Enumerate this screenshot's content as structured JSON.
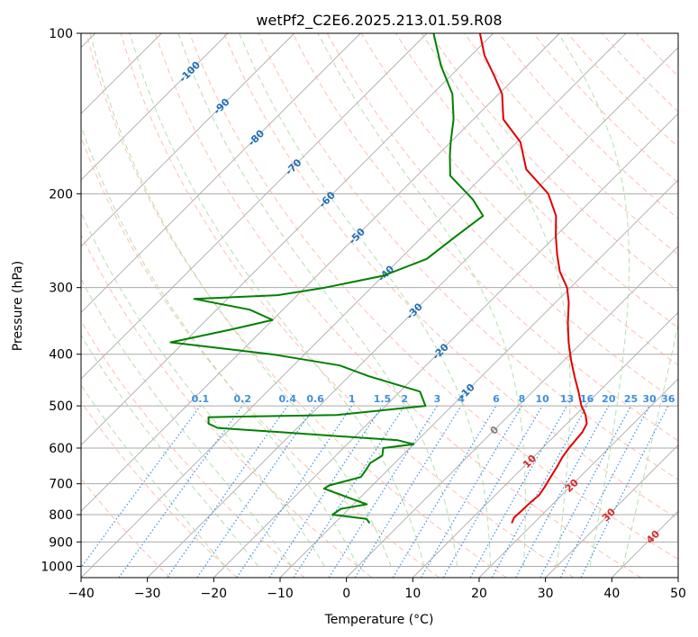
{
  "chart_data": {
    "type": "line",
    "diagram": "Skew-T log-P",
    "title": "wetPf2_C2E6.2025.213.01.59.R08",
    "xlabel": "Temperature (°C)",
    "ylabel": "Pressure (hPa)",
    "xlim": [
      -40,
      50
    ],
    "ylim": [
      1050,
      100
    ],
    "y_scale": "log",
    "grid": true,
    "x_ticks": [
      "−40",
      "−30",
      "−20",
      "−10",
      "0",
      "10",
      "20",
      "30",
      "40",
      "50"
    ],
    "y_ticks": [
      "100",
      "200",
      "300",
      "400",
      "500",
      "600",
      "700",
      "800",
      "900",
      "1000"
    ],
    "series": [
      {
        "color": "#e00000",
        "role": "temperature",
        "points": [
          [
            16.7,
            830
          ],
          [
            16.2,
            810
          ],
          [
            16.3,
            785
          ],
          [
            16.4,
            760
          ],
          [
            16.6,
            735
          ],
          [
            16.2,
            710
          ],
          [
            15.6,
            680
          ],
          [
            15.0,
            650
          ],
          [
            14.4,
            625
          ],
          [
            14.0,
            600
          ],
          [
            13.8,
            580
          ],
          [
            13.6,
            560
          ],
          [
            13.0,
            540
          ],
          [
            11.5,
            520
          ],
          [
            9.5,
            500
          ],
          [
            6.9,
            470
          ],
          [
            4.0,
            440
          ],
          [
            1.0,
            410
          ],
          [
            -2.0,
            380
          ],
          [
            -5.0,
            350
          ],
          [
            -8.0,
            320
          ],
          [
            -10.5,
            300
          ],
          [
            -14.0,
            280
          ],
          [
            -17.0,
            260
          ],
          [
            -20.0,
            240
          ],
          [
            -23.0,
            220
          ],
          [
            -27.5,
            200
          ],
          [
            -34.5,
            180
          ],
          [
            -39.5,
            160
          ],
          [
            -45.5,
            145
          ],
          [
            -49.5,
            130
          ],
          [
            -53.5,
            120
          ],
          [
            -58.0,
            110
          ],
          [
            -62.0,
            100
          ]
        ]
      },
      {
        "color": "#008000",
        "role": "dewpoint",
        "points": [
          [
            -4.7,
            830
          ],
          [
            -5.8,
            815
          ],
          [
            -11.6,
            800
          ],
          [
            -11.2,
            780
          ],
          [
            -8.0,
            765
          ],
          [
            -16.8,
            715
          ],
          [
            -16.5,
            705
          ],
          [
            -13.0,
            680
          ],
          [
            -13.3,
            660
          ],
          [
            -13.7,
            640
          ],
          [
            -13.0,
            620
          ],
          [
            -14.0,
            600
          ],
          [
            -10.0,
            590
          ],
          [
            -13.0,
            580
          ],
          [
            -32.0,
            560
          ],
          [
            -42.0,
            550
          ],
          [
            -44.0,
            540
          ],
          [
            -45.0,
            525
          ],
          [
            -26.0,
            520
          ],
          [
            -14.0,
            500
          ],
          [
            -17.0,
            470
          ],
          [
            -27.0,
            440
          ],
          [
            -33.0,
            420
          ],
          [
            -45.0,
            400
          ],
          [
            -62.0,
            380
          ],
          [
            -55.0,
            360
          ],
          [
            -50.0,
            345
          ],
          [
            -55.0,
            330
          ],
          [
            -65.0,
            315
          ],
          [
            -53.0,
            310
          ],
          [
            -47.0,
            300
          ],
          [
            -40.0,
            285
          ],
          [
            -36.0,
            265
          ],
          [
            -35.0,
            240
          ],
          [
            -34.0,
            220
          ],
          [
            -38.0,
            205
          ],
          [
            -45.0,
            185
          ],
          [
            -48.0,
            170
          ],
          [
            -50.0,
            160
          ],
          [
            -53.0,
            145
          ],
          [
            -57.0,
            130
          ],
          [
            -63.0,
            115
          ],
          [
            -69.0,
            100
          ]
        ]
      }
    ],
    "moisture_labels": [
      "0.1",
      "0.2",
      "0.4",
      "0.6",
      "1",
      "1.5",
      "2",
      "3",
      "4",
      "6",
      "8",
      "10",
      "13",
      "16",
      "20",
      "25",
      "30",
      "36"
    ],
    "isotherm_labels": [
      "-100",
      "-90",
      "-80",
      "-70",
      "-60",
      "-50",
      "-40",
      "-30",
      "-20",
      "-10",
      "0",
      "10",
      "20",
      "30",
      "40"
    ],
    "colors": {
      "temperature": "#e00000",
      "dewpoint": "#008000",
      "isotherm": "#aaaaaa",
      "dry_adiabat": "#fdb09a",
      "moist_adiabat": "#a8d8a0",
      "mixing_ratio": "#3c8fe0",
      "cold_isotherm_label": "#1f6fb4",
      "warm_isotherm_label": "#d62728",
      "zero_label": "#7f7f7f",
      "brown_curve": "#d2b48c"
    }
  }
}
